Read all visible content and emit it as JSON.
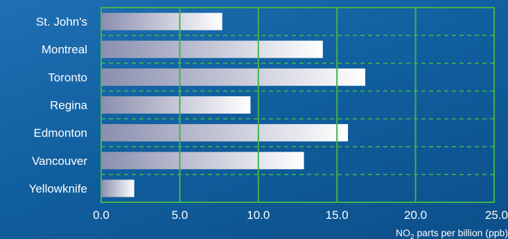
{
  "chart_data": {
    "type": "bar",
    "orientation": "horizontal",
    "categories": [
      "St. John's",
      "Montreal",
      "Toronto",
      "Regina",
      "Edmonton",
      "Vancouver",
      "Yellowknife"
    ],
    "values": [
      7.7,
      14.1,
      16.8,
      9.5,
      15.7,
      12.9,
      2.1
    ],
    "xlim": [
      0,
      25
    ],
    "xticks": [
      "0.0",
      "5.0",
      "10.0",
      "15.0",
      "20.0",
      "25.0"
    ],
    "xlabel_main": "NO",
    "xlabel_sub": "2",
    "xlabel_rest": " parts per billion (ppb)",
    "ylabel": "",
    "title": "",
    "grid": true,
    "colors": {
      "grid": "#3fb54a",
      "bar_start": "#8b8fae",
      "bar_end": "#ffffff",
      "background": "#13609f"
    }
  }
}
